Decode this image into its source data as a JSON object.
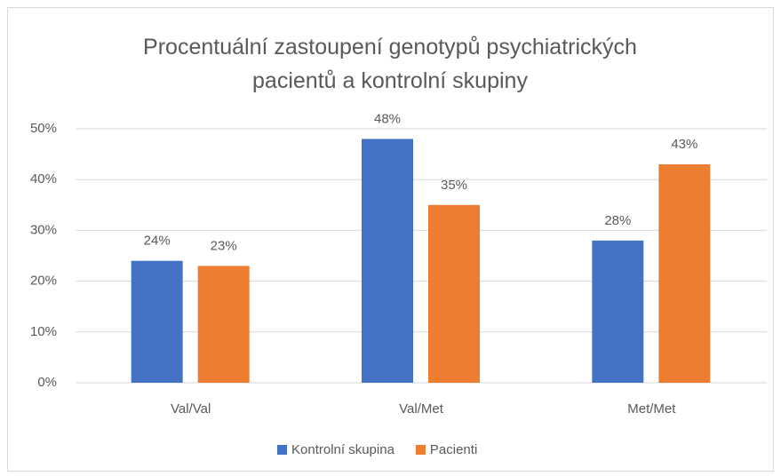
{
  "chart_data": {
    "type": "bar",
    "title": "Procentuální zastoupení genotypů psychiatrických pacientů a kontrolní skupiny",
    "categories": [
      "Val/Val",
      "Val/Met",
      "Met/Met"
    ],
    "series": [
      {
        "name": "Kontrolní skupina",
        "color": "#4472c4",
        "values": [
          24,
          48,
          28
        ],
        "value_labels": [
          "24%",
          "48%",
          "28%"
        ]
      },
      {
        "name": "Pacienti",
        "color": "#ed7d31",
        "values": [
          23,
          35,
          43
        ],
        "value_labels": [
          "23%",
          "35%",
          "43%"
        ]
      }
    ],
    "ylim": [
      0,
      50
    ],
    "yticks": [
      {
        "value": 0,
        "label": "0%"
      },
      {
        "value": 10,
        "label": "10%"
      },
      {
        "value": 20,
        "label": "20%"
      },
      {
        "value": 30,
        "label": "30%"
      },
      {
        "value": 40,
        "label": "40%"
      },
      {
        "value": 50,
        "label": "50%"
      }
    ],
    "grid": true,
    "legend": "bottom"
  }
}
